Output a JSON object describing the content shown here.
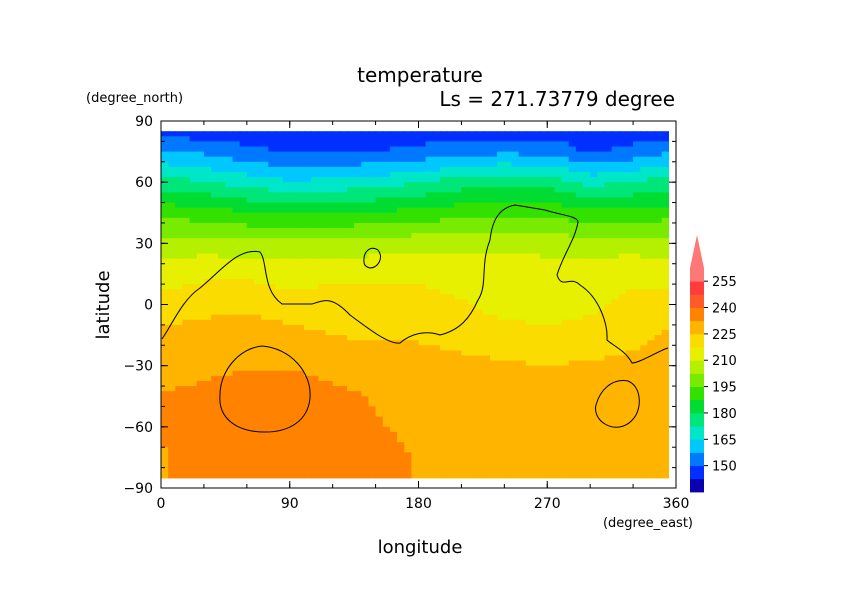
{
  "chart_data": {
    "type": "heatmap",
    "title": "temperature",
    "subtitle": "Ls = 271.73779 degree",
    "xlabel": "longitude",
    "ylabel": "latitude",
    "x_unit": "(degree_east)",
    "y_unit": "(degree_north)",
    "xlim": [
      0,
      360
    ],
    "ylim": [
      -90,
      90
    ],
    "x_ticks": [
      "0",
      "90",
      "180",
      "270",
      "360"
    ],
    "y_ticks": [
      "90",
      "60",
      "30",
      "0",
      "−30",
      "−60",
      "−90"
    ],
    "colorbar": {
      "levels": [
        150,
        165,
        180,
        195,
        210,
        225,
        240,
        255
      ],
      "labels": [
        "150",
        "165",
        "180",
        "195",
        "210",
        "225",
        "240",
        "255"
      ],
      "bin_colors": [
        "#0a00ae",
        "#0030ff",
        "#0078ff",
        "#00c8ff",
        "#00e6c8",
        "#00e678",
        "#00dc32",
        "#32e100",
        "#78eb00",
        "#b4f000",
        "#e6f000",
        "#fadc00",
        "#ffb400",
        "#ff8200",
        "#ff5a28",
        "#ff3c3c",
        "#ff7878"
      ],
      "extend": "max"
    },
    "field": {
      "lon": [
        0,
        30,
        60,
        90,
        120,
        150,
        180,
        210,
        240,
        270,
        300,
        330,
        360
      ],
      "lat": [
        85,
        75,
        60,
        45,
        30,
        15,
        0,
        -15,
        -30,
        -45,
        -60,
        -75,
        -85
      ],
      "values": [
        [
          146,
          146,
          146,
          146,
          146,
          146,
          146,
          146,
          146,
          146,
          146,
          146,
          146
        ],
        [
          158,
          156,
          152,
          149,
          149,
          150,
          152,
          154,
          156,
          155,
          149,
          152,
          158
        ],
        [
          176,
          173,
          169,
          166,
          167,
          169,
          172,
          176,
          178,
          177,
          170,
          173,
          176
        ],
        [
          192,
          191,
          188,
          186,
          187,
          188,
          190,
          192,
          193,
          193,
          189,
          190,
          192
        ],
        [
          206,
          206,
          205,
          205,
          205,
          206,
          207,
          207,
          208,
          207,
          206,
          206,
          206
        ],
        [
          214,
          216,
          216,
          214,
          215,
          216,
          216,
          215,
          214,
          214,
          215,
          216,
          214
        ],
        [
          220,
          222,
          223,
          221,
          222,
          221,
          220,
          218,
          215,
          214,
          216,
          219,
          220
        ],
        [
          227,
          229,
          229,
          227,
          225,
          224,
          224,
          222,
          220,
          219,
          220,
          223,
          227
        ],
        [
          229,
          231,
          232,
          232,
          230,
          229,
          228,
          227,
          226,
          225,
          226,
          227,
          229
        ],
        [
          233,
          234,
          236,
          236,
          234,
          232,
          230,
          228,
          227,
          226,
          227,
          227,
          228
        ],
        [
          233,
          235,
          237,
          237,
          236,
          233,
          231,
          230,
          229,
          228,
          228,
          228,
          228
        ],
        [
          232,
          235,
          237,
          237,
          236,
          235,
          232,
          230,
          229,
          228,
          228,
          228,
          228
        ],
        [
          232,
          234,
          236,
          236,
          235,
          234,
          232,
          230,
          229,
          228,
          228,
          228,
          228
        ]
      ]
    },
    "overlay": "black contour lines (topography)"
  }
}
